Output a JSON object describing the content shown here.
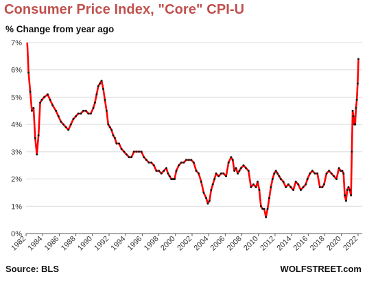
{
  "title": "Consumer Price Index, \"Core\" CPI-U",
  "subtitle": "% Change from year ago",
  "source": "Source: BLS",
  "brand": "WOLFSTREET.com",
  "colors": {
    "line": "#ff0000",
    "marker": "#1a1a1a",
    "grid": "#d9d9d9",
    "axis": "#595959",
    "title": "#c0504d",
    "text": "#111111"
  },
  "chart_data": {
    "type": "line",
    "title": "Consumer Price Index, \"Core\" CPI-U",
    "subtitle": "% Change from year ago",
    "xlabel": "",
    "ylabel": "% Change from year ago",
    "xlim": [
      1982,
      2022.5
    ],
    "ylim": [
      0,
      7
    ],
    "grid": true,
    "legend": "none",
    "y_ticks": [
      {
        "value": 0,
        "label": "0%"
      },
      {
        "value": 1,
        "label": "1%"
      },
      {
        "value": 2,
        "label": "2%"
      },
      {
        "value": 3,
        "label": "3%"
      },
      {
        "value": 4,
        "label": "4%"
      },
      {
        "value": 5,
        "label": "5%"
      },
      {
        "value": 6,
        "label": "6%"
      },
      {
        "value": 7,
        "label": "7%"
      }
    ],
    "x_ticks": [
      "1982",
      "1984",
      "1986",
      "1988",
      "1990",
      "1992",
      "1994",
      "1996",
      "1998",
      "2000",
      "2002",
      "2004",
      "2006",
      "2008",
      "2010",
      "2012",
      "2014",
      "2016",
      "2018",
      "2020",
      "2022"
    ],
    "series": [
      {
        "x": [
          1982.1,
          1982.3,
          1982.5,
          1982.7,
          1982.9,
          1983.1,
          1983.3,
          1983.5,
          1983.7,
          1983.9,
          1984.2,
          1984.6,
          1984.9,
          1985.2,
          1985.6,
          1985.9,
          1986.2,
          1986.5,
          1986.8,
          1987.1,
          1987.4,
          1987.7,
          1988.0,
          1988.3,
          1988.6,
          1988.9,
          1989.2,
          1989.5,
          1989.8,
          1990.1,
          1990.3,
          1990.5,
          1990.7,
          1990.9,
          1991.1,
          1991.3,
          1991.5,
          1991.7,
          1991.9,
          1992.1,
          1992.3,
          1992.5,
          1992.7,
          1992.9,
          1993.2,
          1993.5,
          1993.8,
          1994.1,
          1994.4,
          1994.7,
          1995.0,
          1995.3,
          1995.6,
          1995.9,
          1996.2,
          1996.5,
          1996.8,
          1997.1,
          1997.4,
          1997.7,
          1998.0,
          1998.3,
          1998.6,
          1998.9,
          1999.1,
          1999.3,
          1999.5,
          1999.7,
          1999.9,
          2000.1,
          2000.4,
          2000.7,
          2001.0,
          2001.3,
          2001.6,
          2001.9,
          2002.2,
          2002.5,
          2002.8,
          2003.1,
          2003.4,
          2003.7,
          2003.9,
          2004.1,
          2004.3,
          2004.5,
          2004.7,
          2004.9,
          2005.2,
          2005.5,
          2005.8,
          2006.1,
          2006.4,
          2006.7,
          2006.9,
          2007.1,
          2007.3,
          2007.5,
          2007.7,
          2007.9,
          2008.2,
          2008.5,
          2008.8,
          2009.1,
          2009.4,
          2009.7,
          2009.9,
          2010.1,
          2010.3,
          2010.5,
          2010.7,
          2010.9,
          2011.1,
          2011.3,
          2011.5,
          2011.7,
          2011.9,
          2012.1,
          2012.3,
          2012.5,
          2012.7,
          2013.0,
          2013.3,
          2013.6,
          2013.9,
          2014.2,
          2014.5,
          2014.8,
          2015.1,
          2015.4,
          2015.7,
          2015.9,
          2016.2,
          2016.5,
          2016.8,
          2017.1,
          2017.4,
          2017.7,
          2017.9,
          2018.2,
          2018.5,
          2018.8,
          2019.1,
          2019.4,
          2019.7,
          2019.9,
          2020.1,
          2020.25,
          2020.4,
          2020.55,
          2020.7,
          2020.85,
          2021.0,
          2021.15,
          2021.25,
          2021.35,
          2021.45,
          2021.55,
          2021.65,
          2021.75,
          2021.85,
          2021.95,
          2022.05
        ],
        "y": [
          7.3,
          5.9,
          5.2,
          4.5,
          4.6,
          3.5,
          2.9,
          3.6,
          4.8,
          4.9,
          5.0,
          5.1,
          4.9,
          4.7,
          4.5,
          4.3,
          4.1,
          4.0,
          3.9,
          3.8,
          4.0,
          4.2,
          4.3,
          4.4,
          4.4,
          4.5,
          4.5,
          4.4,
          4.4,
          4.6,
          4.8,
          5.1,
          5.4,
          5.5,
          5.6,
          5.3,
          4.9,
          4.5,
          4.0,
          3.9,
          3.8,
          3.6,
          3.5,
          3.3,
          3.3,
          3.1,
          3.0,
          2.9,
          2.8,
          2.8,
          3.0,
          3.0,
          3.0,
          3.0,
          2.8,
          2.7,
          2.6,
          2.6,
          2.5,
          2.3,
          2.3,
          2.2,
          2.3,
          2.4,
          2.2,
          2.1,
          2.0,
          2.0,
          2.0,
          2.3,
          2.5,
          2.6,
          2.6,
          2.7,
          2.7,
          2.7,
          2.6,
          2.3,
          2.2,
          1.9,
          1.5,
          1.3,
          1.1,
          1.2,
          1.6,
          1.8,
          2.0,
          2.2,
          2.1,
          2.2,
          2.2,
          2.1,
          2.6,
          2.8,
          2.7,
          2.3,
          2.4,
          2.2,
          2.3,
          2.4,
          2.5,
          2.4,
          2.3,
          1.7,
          1.8,
          1.7,
          1.9,
          1.6,
          1.0,
          0.9,
          0.9,
          0.6,
          0.9,
          1.3,
          1.7,
          2.0,
          2.2,
          2.3,
          2.2,
          2.1,
          2.0,
          1.9,
          1.7,
          1.8,
          1.7,
          1.6,
          1.9,
          1.8,
          1.6,
          1.7,
          1.8,
          2.0,
          2.2,
          2.3,
          2.2,
          2.2,
          1.7,
          1.7,
          1.8,
          2.2,
          2.3,
          2.2,
          2.1,
          2.0,
          2.4,
          2.3,
          2.3,
          2.2,
          1.4,
          1.2,
          1.6,
          1.7,
          1.6,
          1.4,
          3.0,
          4.5,
          4.3,
          4.0,
          4.0,
          4.6,
          4.9,
          5.5,
          6.4
        ]
      }
    ]
  }
}
